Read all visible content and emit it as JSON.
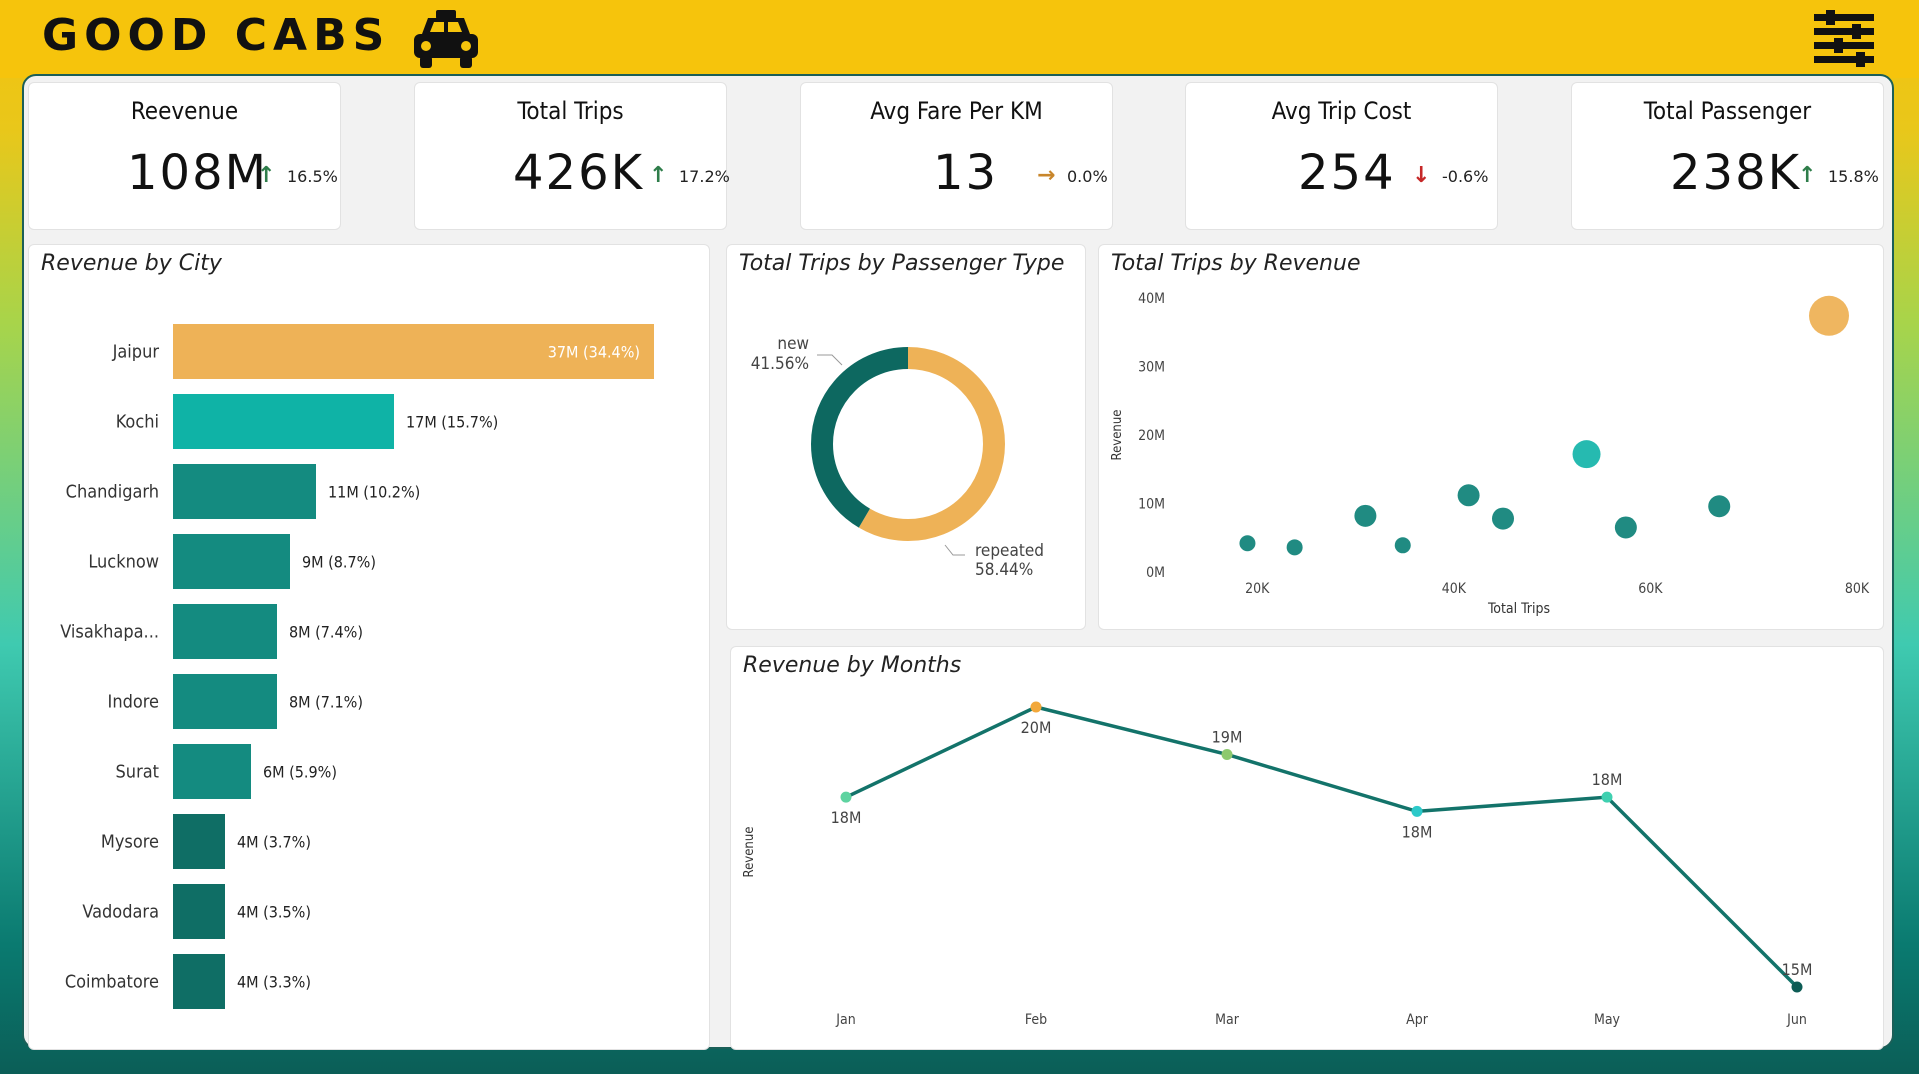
{
  "app": {
    "title": "GOOD CABS"
  },
  "icons": {
    "logo": "taxi-icon",
    "menu": "sliders-icon"
  },
  "colors": {
    "accent": "#f6c40c",
    "teal_dark": "#0b6b63",
    "teal_light": "#16b6aa",
    "orange": "#eeb257",
    "up": "#2e7d4a",
    "down": "#c62828",
    "flat": "#c8862b"
  },
  "kpis": [
    {
      "title": "Reevenue",
      "value": "108M",
      "delta": "16.5%",
      "direction": "up"
    },
    {
      "title": "Total Trips",
      "value": "426K",
      "delta": "17.2%",
      "direction": "up"
    },
    {
      "title": "Avg Fare Per KM",
      "value": "13",
      "delta": "0.0%",
      "direction": "flat"
    },
    {
      "title": "Avg Trip Cost",
      "value": "254",
      "delta": "-0.6%",
      "direction": "down"
    },
    {
      "title": "Total Passenger",
      "value": "238K",
      "delta": "15.8%",
      "direction": "up"
    }
  ],
  "chart_data": [
    {
      "type": "bar",
      "title": "Revenue by City",
      "orientation": "horizontal",
      "categories": [
        "Jaipur",
        "Kochi",
        "Chandigarh",
        "Lucknow",
        "Visakhapa...",
        "Indore",
        "Surat",
        "Mysore",
        "Vadodara",
        "Coimbatore"
      ],
      "values": [
        37,
        17,
        11,
        9,
        8,
        8,
        6,
        4,
        4,
        4
      ],
      "data_labels": [
        "37M (34.4%)",
        "17M (15.7%)",
        "11M (10.2%)",
        "9M (8.7%)",
        "8M (7.4%)",
        "8M (7.1%)",
        "6M (5.9%)",
        "4M (3.7%)",
        "4M (3.5%)",
        "4M (3.3%)"
      ],
      "colors": [
        "#eeb257",
        "#0fb3a6",
        "#148b80",
        "#148b80",
        "#148b80",
        "#148b80",
        "#148b80",
        "#0f6e65",
        "#0f6e65",
        "#0f6e65"
      ]
    },
    {
      "type": "pie",
      "title": "Total Trips by Passenger Type",
      "style": "donut",
      "slices": [
        {
          "label": "new",
          "value": 41.56,
          "display": "41.56%",
          "color": "#0d6860"
        },
        {
          "label": "repeated",
          "value": 58.44,
          "display": "58.44%",
          "color": "#eeb257"
        }
      ]
    },
    {
      "type": "scatter",
      "title": "Total Trips by Revenue",
      "xlabel": "Total Trips",
      "ylabel": "Revenue",
      "xlim": [
        10000,
        80000
      ],
      "ylim": [
        0,
        40
      ],
      "xticks": [
        "20K",
        "40K",
        "60K",
        "80K"
      ],
      "yticks": [
        "0M",
        "10M",
        "20M",
        "30M",
        "40M"
      ],
      "points": [
        {
          "x": 19000,
          "y": 4.2,
          "size": "small",
          "color": "#14857b"
        },
        {
          "x": 23800,
          "y": 3.6,
          "size": "small",
          "color": "#14857b"
        },
        {
          "x": 31000,
          "y": 8.2,
          "size": "medium",
          "color": "#14857b"
        },
        {
          "x": 34800,
          "y": 3.9,
          "size": "small",
          "color": "#14857b"
        },
        {
          "x": 41500,
          "y": 11.2,
          "size": "medium",
          "color": "#14857b"
        },
        {
          "x": 45000,
          "y": 7.8,
          "size": "medium",
          "color": "#14857b"
        },
        {
          "x": 53500,
          "y": 17.2,
          "size": "large",
          "color": "#1ab6ac"
        },
        {
          "x": 57500,
          "y": 6.5,
          "size": "medium",
          "color": "#14857b"
        },
        {
          "x": 67000,
          "y": 9.6,
          "size": "medium",
          "color": "#14857b"
        },
        {
          "x": 80000,
          "y": 37.4,
          "size": "xlarge",
          "color": "#eeb257"
        }
      ]
    },
    {
      "type": "line",
      "title": "Revenue by Months",
      "ylabel": "Revenue",
      "categories": [
        "Jan",
        "Feb",
        "Mar",
        "Apr",
        "May",
        "Jun"
      ],
      "values": [
        18,
        20,
        19,
        18,
        18,
        15
      ],
      "data_labels": [
        "18M",
        "20M",
        "19M",
        "18M",
        "18M",
        "15M"
      ],
      "label_positions": [
        "below",
        "below",
        "above",
        "below",
        "above",
        "above"
      ],
      "point_colors": [
        "#5ed3a0",
        "#f2a83b",
        "#8dc96e",
        "#2cc9c9",
        "#3fd0b0",
        "#0d5c55"
      ],
      "line_color": "#13736a"
    }
  ]
}
